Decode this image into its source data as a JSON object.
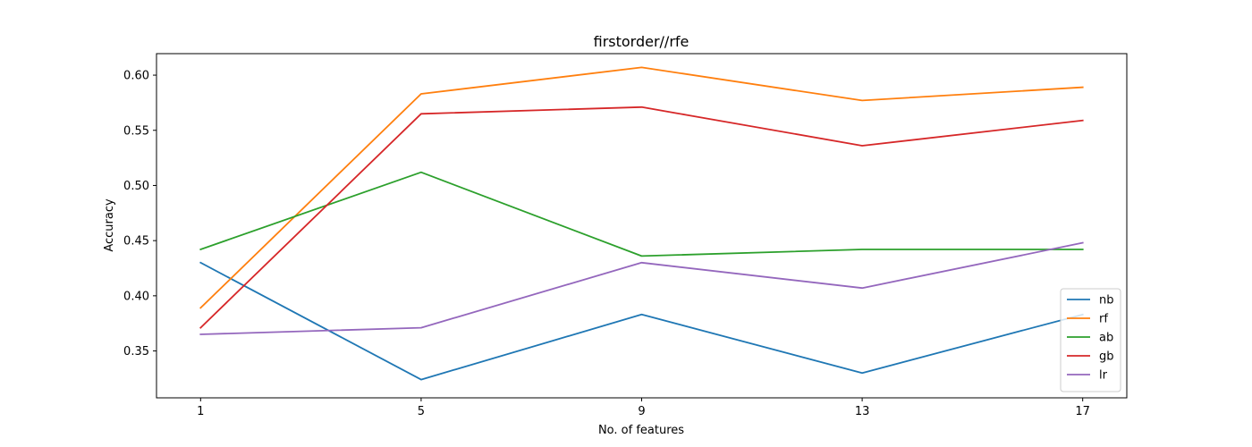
{
  "chart_data": {
    "type": "line",
    "title": "firstorder//rfe",
    "xlabel": "No. of features",
    "ylabel": "Accuracy",
    "x": [
      1,
      5,
      9,
      13,
      17
    ],
    "xticks": [
      "1",
      "5",
      "9",
      "13",
      "17"
    ],
    "xlim": [
      0.2,
      17.8
    ],
    "ylim": [
      0.3075,
      0.6195
    ],
    "yticks": [
      0.35,
      0.4,
      0.45,
      0.5,
      0.55,
      0.6
    ],
    "ytick_labels": [
      "0.35",
      "0.40",
      "0.45",
      "0.50",
      "0.55",
      "0.60"
    ],
    "grid": false,
    "legend_position": "lower-right",
    "series": [
      {
        "name": "nb",
        "color": "#1f77b4",
        "values": [
          0.43,
          0.324,
          0.383,
          0.33,
          0.383
        ]
      },
      {
        "name": "rf",
        "color": "#ff7f0e",
        "values": [
          0.389,
          0.583,
          0.607,
          0.577,
          0.589
        ]
      },
      {
        "name": "ab",
        "color": "#2ca02c",
        "values": [
          0.442,
          0.512,
          0.436,
          0.442,
          0.442
        ]
      },
      {
        "name": "gb",
        "color": "#d62728",
        "values": [
          0.371,
          0.565,
          0.571,
          0.536,
          0.559
        ]
      },
      {
        "name": "lr",
        "color": "#9467bd",
        "values": [
          0.365,
          0.371,
          0.43,
          0.407,
          0.448
        ]
      }
    ]
  }
}
